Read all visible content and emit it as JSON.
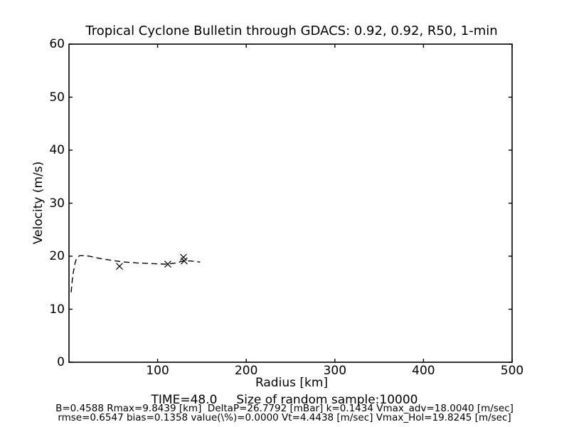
{
  "title": "Tropical Cyclone Bulletin through GDACS: 0.92, 0.92, R50, 1-min",
  "caption": {
    "line1": "TIME=48.0     Size of random sample:10000",
    "line2": "B=0.4588 Rmax=9.8439 [km]  DeltaP=26.7792 [mBar] k=0.1434 Vmax_adv=18.0040 [m/sec]",
    "line3": "rmse=0.6547 bias=0.1358 value(\\%)=0.0000 Vt=4.4438 [m/sec] Vmax_Hol=19.8245 [m/sec]"
  },
  "colors": {
    "background": "#ffffff",
    "foreground": "#000000"
  },
  "chart_data": {
    "type": "line",
    "title": "Tropical Cyclone Bulletin through GDACS: 0.92, 0.92, R50, 1-min",
    "xlabel": "Radius [km]",
    "ylabel": "Velocity (m/s)",
    "xlim": [
      0,
      500
    ],
    "ylim": [
      0,
      60
    ],
    "xticks": [
      100,
      200,
      300,
      400,
      500
    ],
    "yticks": [
      0,
      10,
      20,
      30,
      40,
      50,
      60
    ],
    "grid": false,
    "legend": false,
    "series": [
      {
        "name": "holland-profile-fit",
        "style": "dashed-line",
        "color": "#000000",
        "points": [
          [
            2.4,
            13.2
          ],
          [
            3.2,
            14.6
          ],
          [
            4.0,
            16.0
          ],
          [
            5.2,
            17.3
          ],
          [
            6.8,
            18.7
          ],
          [
            8.8,
            19.7
          ],
          [
            12,
            20.1
          ],
          [
            17,
            20.1
          ],
          [
            23,
            20.0
          ],
          [
            34,
            19.6
          ],
          [
            49,
            19.2
          ],
          [
            63,
            18.9
          ],
          [
            79,
            18.7
          ],
          [
            95,
            18.6
          ],
          [
            109,
            18.5
          ],
          [
            120,
            18.7
          ],
          [
            129,
            19.1
          ],
          [
            137,
            19.1
          ],
          [
            148,
            18.9
          ]
        ]
      },
      {
        "name": "bulletin-sample-points",
        "style": "x-markers",
        "color": "#000000",
        "points": [
          [
            57,
            18.1
          ],
          [
            111.5,
            18.5
          ],
          [
            129.2,
            19.8
          ],
          [
            130,
            19.1
          ]
        ]
      }
    ]
  }
}
